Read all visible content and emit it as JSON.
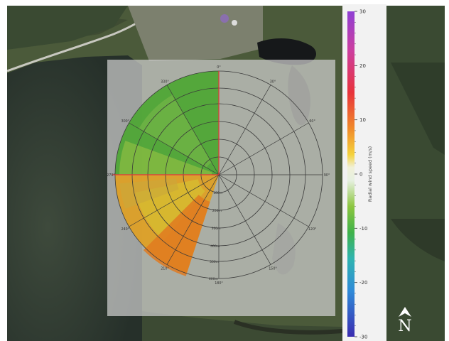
{
  "map": {
    "overlay_opacity": 0.55,
    "north_label": "N",
    "north_arrow_icon": "north-arrow-icon"
  },
  "radar": {
    "range_labels": [
      "100m",
      "200m",
      "300m",
      "400m",
      "500m",
      "600m"
    ],
    "azimuth_labels": [
      {
        "deg": 0,
        "text": "0°"
      },
      {
        "deg": 30,
        "text": "30°"
      },
      {
        "deg": 60,
        "text": "60°"
      },
      {
        "deg": 90,
        "text": "90°"
      },
      {
        "deg": 120,
        "text": "120°"
      },
      {
        "deg": 150,
        "text": "150°"
      },
      {
        "deg": 180,
        "text": "180°"
      },
      {
        "deg": 210,
        "text": "210°"
      },
      {
        "deg": 240,
        "text": "240°"
      },
      {
        "deg": 270,
        "text": "270°"
      },
      {
        "deg": 300,
        "text": "300°"
      },
      {
        "deg": 330,
        "text": "330°"
      }
    ]
  },
  "colorbar": {
    "label": "Radial wind speed (m/s)",
    "min": -30,
    "max": 30,
    "ticks": [
      "30",
      "20",
      "10",
      "0",
      "-10",
      "-20",
      "-30"
    ]
  }
}
